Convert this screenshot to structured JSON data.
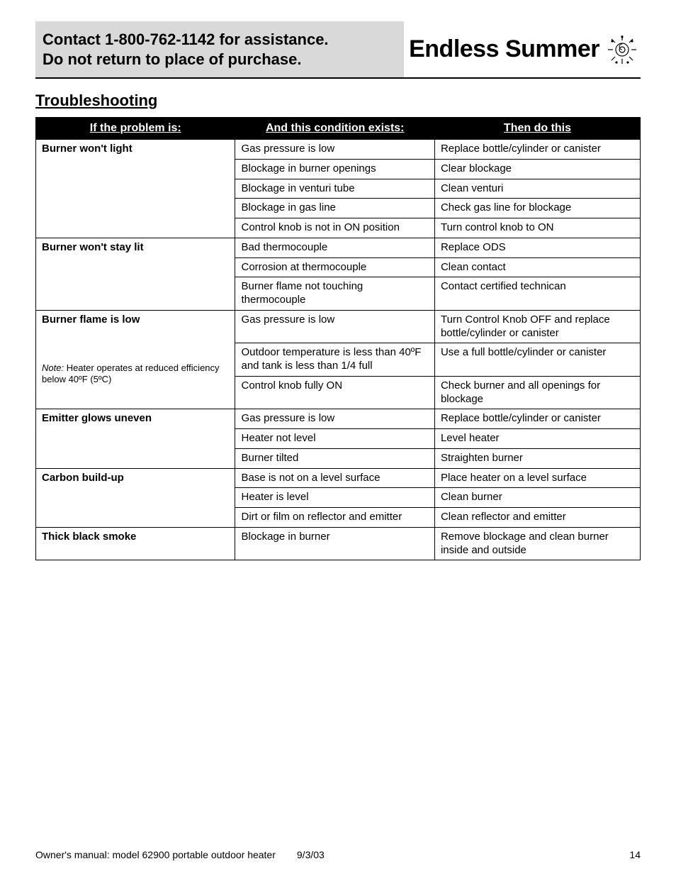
{
  "header": {
    "contact_line1": "Contact 1-800-762-1142 for assistance.",
    "contact_line2": "Do not return to place of purchase.",
    "brand": "Endless Summer"
  },
  "section_title": "Troubleshooting",
  "table": {
    "columns": [
      "If the problem is:",
      "And this condition exists:",
      "Then do this"
    ],
    "col_widths": [
      "33%",
      "33%",
      "34%"
    ],
    "groups": [
      {
        "problem": "Burner won't light",
        "note": null,
        "rows": [
          {
            "condition": "Gas pressure is low",
            "action": "Replace bottle/cylinder or canister"
          },
          {
            "condition": "Blockage in burner openings",
            "action": "Clear blockage"
          },
          {
            "condition": "Blockage in venturi tube",
            "action": "Clean venturi"
          },
          {
            "condition": "Blockage in gas line",
            "action": "Check gas line for blockage"
          },
          {
            "condition": "Control knob is not in ON position",
            "action": "Turn control knob to ON"
          }
        ]
      },
      {
        "problem": "Burner won't stay lit",
        "note": null,
        "rows": [
          {
            "condition": "Bad thermocouple",
            "action": "Replace ODS"
          },
          {
            "condition": "Corrosion at thermocouple",
            "action": "Clean contact"
          },
          {
            "condition": "Burner flame not touching thermocouple",
            "action": "Contact certified technican"
          }
        ]
      },
      {
        "problem": "Burner flame is low",
        "note": {
          "prefix": "Note:",
          "text": " Heater operates at reduced efficiency below 40ºF (5ºC)"
        },
        "rows": [
          {
            "condition": "Gas pressure is low",
            "action": "Turn Control Knob OFF and replace bottle/cylinder or canister"
          },
          {
            "condition": "Outdoor temperature is less than 40ºF and tank is less than 1/4 full",
            "action": "Use a full bottle/cylinder or canister"
          },
          {
            "condition": "Control knob fully ON",
            "action": "Check burner and all openings for blockage"
          }
        ]
      },
      {
        "problem": "Emitter glows uneven",
        "note": null,
        "rows": [
          {
            "condition": "Gas pressure is low",
            "action": "Replace bottle/cylinder or canister"
          },
          {
            "condition": "Heater not level",
            "action": "Level heater"
          },
          {
            "condition": "Burner tilted",
            "action": "Straighten burner"
          }
        ]
      },
      {
        "problem": "Carbon build-up",
        "note": null,
        "rows": [
          {
            "condition": "Base is not on a level surface",
            "action": "Place heater on a level surface"
          },
          {
            "condition": "Heater is level",
            "action": "Clean burner"
          },
          {
            "condition": "Dirt or film on reflector and emitter",
            "action": "Clean reflector and emitter"
          }
        ]
      },
      {
        "problem": "Thick black smoke",
        "note": null,
        "rows": [
          {
            "condition": "Blockage in burner",
            "action": "Remove blockage and clean burner inside and outside"
          }
        ]
      }
    ]
  },
  "footer": {
    "left": "Owner's manual: model 62900 portable outdoor heater",
    "date": "9/3/03",
    "page": "14"
  },
  "colors": {
    "header_bg": "#d9d9d9",
    "table_header_bg": "#000000",
    "table_header_fg": "#ffffff",
    "border": "#000000"
  }
}
